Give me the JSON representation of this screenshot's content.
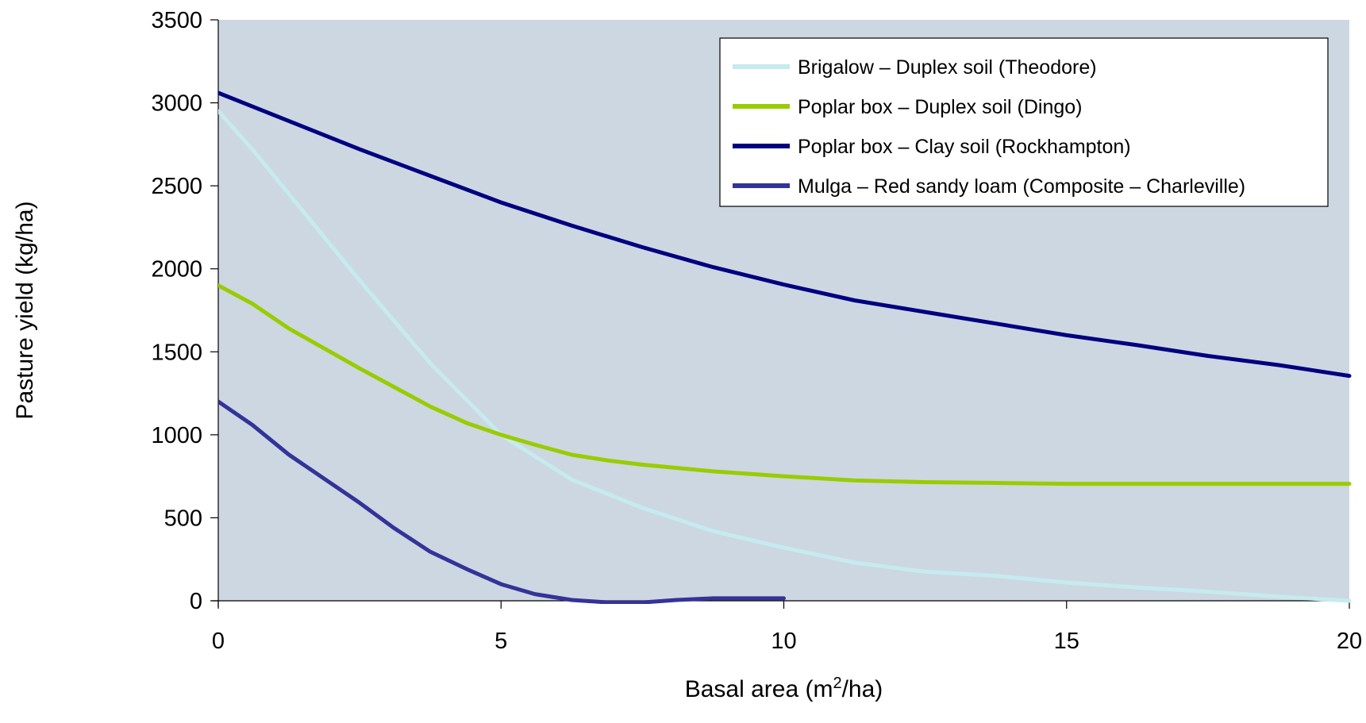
{
  "chart_data": {
    "type": "line",
    "xlabel": "Basal area (m",
    "xlabel_superscript": "2",
    "xlabel_suffix": "/ha)",
    "ylabel": "Pasture yield (kg/ha)",
    "xlim": [
      0,
      20
    ],
    "ylim": [
      0,
      3500
    ],
    "x_ticks": [
      "0",
      "5",
      "10",
      "15",
      "20"
    ],
    "y_ticks": [
      "0",
      "500",
      "1000",
      "1500",
      "2000",
      "2500",
      "3000",
      "3500"
    ],
    "x_tick_values": [
      0,
      5,
      10,
      15,
      20
    ],
    "y_tick_values": [
      0,
      500,
      1000,
      1500,
      2000,
      2500,
      3000,
      3500
    ],
    "grid": false,
    "plot_background": "#cdd7e1",
    "legend_position": "top-right",
    "series": [
      {
        "name": "Brigalow – Duplex soil (Theodore)",
        "color": "#c5ebef",
        "points": [
          [
            0,
            2950
          ],
          [
            0.6,
            2720
          ],
          [
            1.25,
            2450
          ],
          [
            2.5,
            1930
          ],
          [
            3.75,
            1430
          ],
          [
            5,
            1000
          ],
          [
            6.25,
            730
          ],
          [
            7.5,
            560
          ],
          [
            8.75,
            420
          ],
          [
            10,
            320
          ],
          [
            11.25,
            230
          ],
          [
            12.5,
            175
          ],
          [
            13.75,
            150
          ],
          [
            15,
            110
          ],
          [
            16.25,
            80
          ],
          [
            17.5,
            55
          ],
          [
            18.75,
            25
          ],
          [
            20,
            0
          ]
        ]
      },
      {
        "name": "Poplar box – Duplex soil (Dingo)",
        "color": "#99cc00",
        "points": [
          [
            0,
            1900
          ],
          [
            0.6,
            1790
          ],
          [
            1.25,
            1640
          ],
          [
            2.5,
            1400
          ],
          [
            3.75,
            1170
          ],
          [
            4.4,
            1070
          ],
          [
            5,
            1000
          ],
          [
            5.6,
            940
          ],
          [
            6.25,
            880
          ],
          [
            6.9,
            845
          ],
          [
            7.5,
            820
          ],
          [
            8.75,
            780
          ],
          [
            10,
            750
          ],
          [
            11.25,
            725
          ],
          [
            12.5,
            715
          ],
          [
            13.75,
            710
          ],
          [
            15,
            705
          ],
          [
            16.25,
            705
          ],
          [
            17.5,
            705
          ],
          [
            18.75,
            705
          ],
          [
            20,
            705
          ]
        ]
      },
      {
        "name": "Poplar box – Clay soil (Rockhampton)",
        "color": "#000080",
        "points": [
          [
            0,
            3060
          ],
          [
            1.25,
            2890
          ],
          [
            2.5,
            2720
          ],
          [
            3.75,
            2560
          ],
          [
            5,
            2400
          ],
          [
            6.25,
            2260
          ],
          [
            7.5,
            2130
          ],
          [
            8.75,
            2010
          ],
          [
            10,
            1905
          ],
          [
            11.25,
            1810
          ],
          [
            12.5,
            1740
          ],
          [
            13.75,
            1670
          ],
          [
            15,
            1600
          ],
          [
            16.25,
            1540
          ],
          [
            17.5,
            1475
          ],
          [
            18.75,
            1420
          ],
          [
            20,
            1355
          ]
        ]
      },
      {
        "name": "Mulga – Red sandy loam (Composite – Charleville)",
        "color": "#333399",
        "points": [
          [
            0,
            1200
          ],
          [
            0.6,
            1060
          ],
          [
            1.25,
            880
          ],
          [
            2.5,
            590
          ],
          [
            3.1,
            440
          ],
          [
            3.75,
            295
          ],
          [
            4.4,
            190
          ],
          [
            5,
            100
          ],
          [
            5.6,
            40
          ],
          [
            6.25,
            5
          ],
          [
            6.9,
            -10
          ],
          [
            7.5,
            -10
          ],
          [
            8.1,
            5
          ],
          [
            8.75,
            15
          ],
          [
            10,
            15
          ]
        ]
      }
    ]
  }
}
